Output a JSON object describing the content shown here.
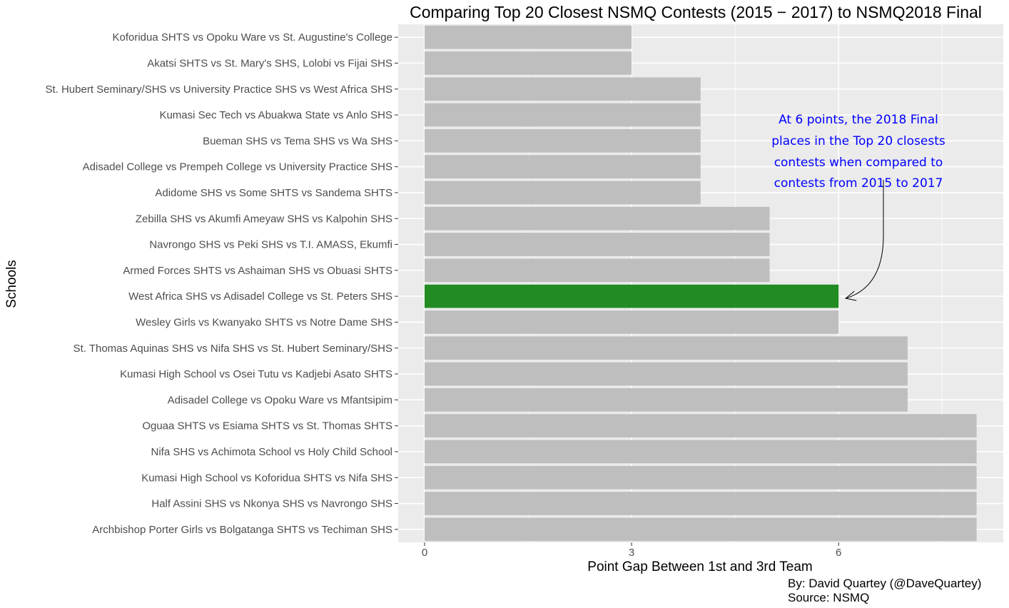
{
  "chart_data": {
    "type": "bar",
    "orientation": "horizontal",
    "title": "Comparing Top 20 Closest NSMQ Contests (2015 − 2017) to NSMQ2018 Final",
    "xlabel": "Point Gap Between 1st and 3rd Team",
    "ylabel": "Schools",
    "xlim": [
      0,
      8
    ],
    "xticks": [
      0,
      3,
      6
    ],
    "grid": true,
    "legend": "none",
    "categories": [
      "Koforidua SHTS vs Opoku Ware vs St. Augustine's College",
      "Akatsi SHTS vs St. Mary's SHS, Lolobi vs Fijai SHS",
      "St. Hubert Seminary/SHS vs University Practice SHS vs West Africa SHS",
      "Kumasi Sec Tech vs Abuakwa State vs Anlo SHS",
      "Bueman SHS vs Tema SHS vs Wa SHS",
      "Adisadel College vs Prempeh College vs University Practice SHS",
      "Adidome SHS vs Some SHTS vs Sandema SHTS",
      "Zebilla SHS vs Akumfi Ameyaw SHS vs Kalpohin SHS",
      "Navrongo SHS vs Peki SHS vs T.I. AMASS, Ekumfi",
      "Armed Forces SHTS vs Ashaiman SHS vs Obuasi SHTS",
      "West Africa SHS vs Adisadel College vs St. Peters SHS",
      "Wesley Girls vs Kwanyako SHTS vs Notre Dame SHS",
      "St. Thomas Aquinas SHS vs Nifa SHS vs St. Hubert Seminary/SHS",
      "Kumasi High School vs Osei Tutu vs Kadjebi Asato SHTS",
      "Adisadel College vs Opoku Ware vs Mfantsipim",
      "Oguaa SHTS vs Esiama SHTS vs St. Thomas SHTS",
      "Nifa SHS vs Achimota School vs Holy Child School",
      "Kumasi High School vs Koforidua SHTS vs Nifa SHS",
      "Half Assini SHS vs Nkonya SHS vs Navrongo SHS",
      "Archbishop Porter Girls vs Bolgatanga SHTS vs Techiman SHS"
    ],
    "values": [
      3,
      3,
      4,
      4,
      4,
      4,
      4,
      5,
      5,
      5,
      6,
      6,
      7,
      7,
      7,
      8,
      8,
      8,
      8,
      8
    ],
    "highlight_index": 10,
    "colors": {
      "bar": "#bebebe",
      "highlight": "#228b22",
      "panel": "#ebebeb",
      "grid": "#ffffff",
      "annotation": "#0000ff"
    },
    "annotation": {
      "lines": [
        "At 6 points, the 2018 Final",
        "places in the Top 20 closests",
        "contests when compared to",
        "contests from 2015 to 2017"
      ],
      "points_to_value": 6
    },
    "caption": [
      "By: David Quartey (@DaveQuartey)",
      "Source: NSMQ"
    ]
  }
}
